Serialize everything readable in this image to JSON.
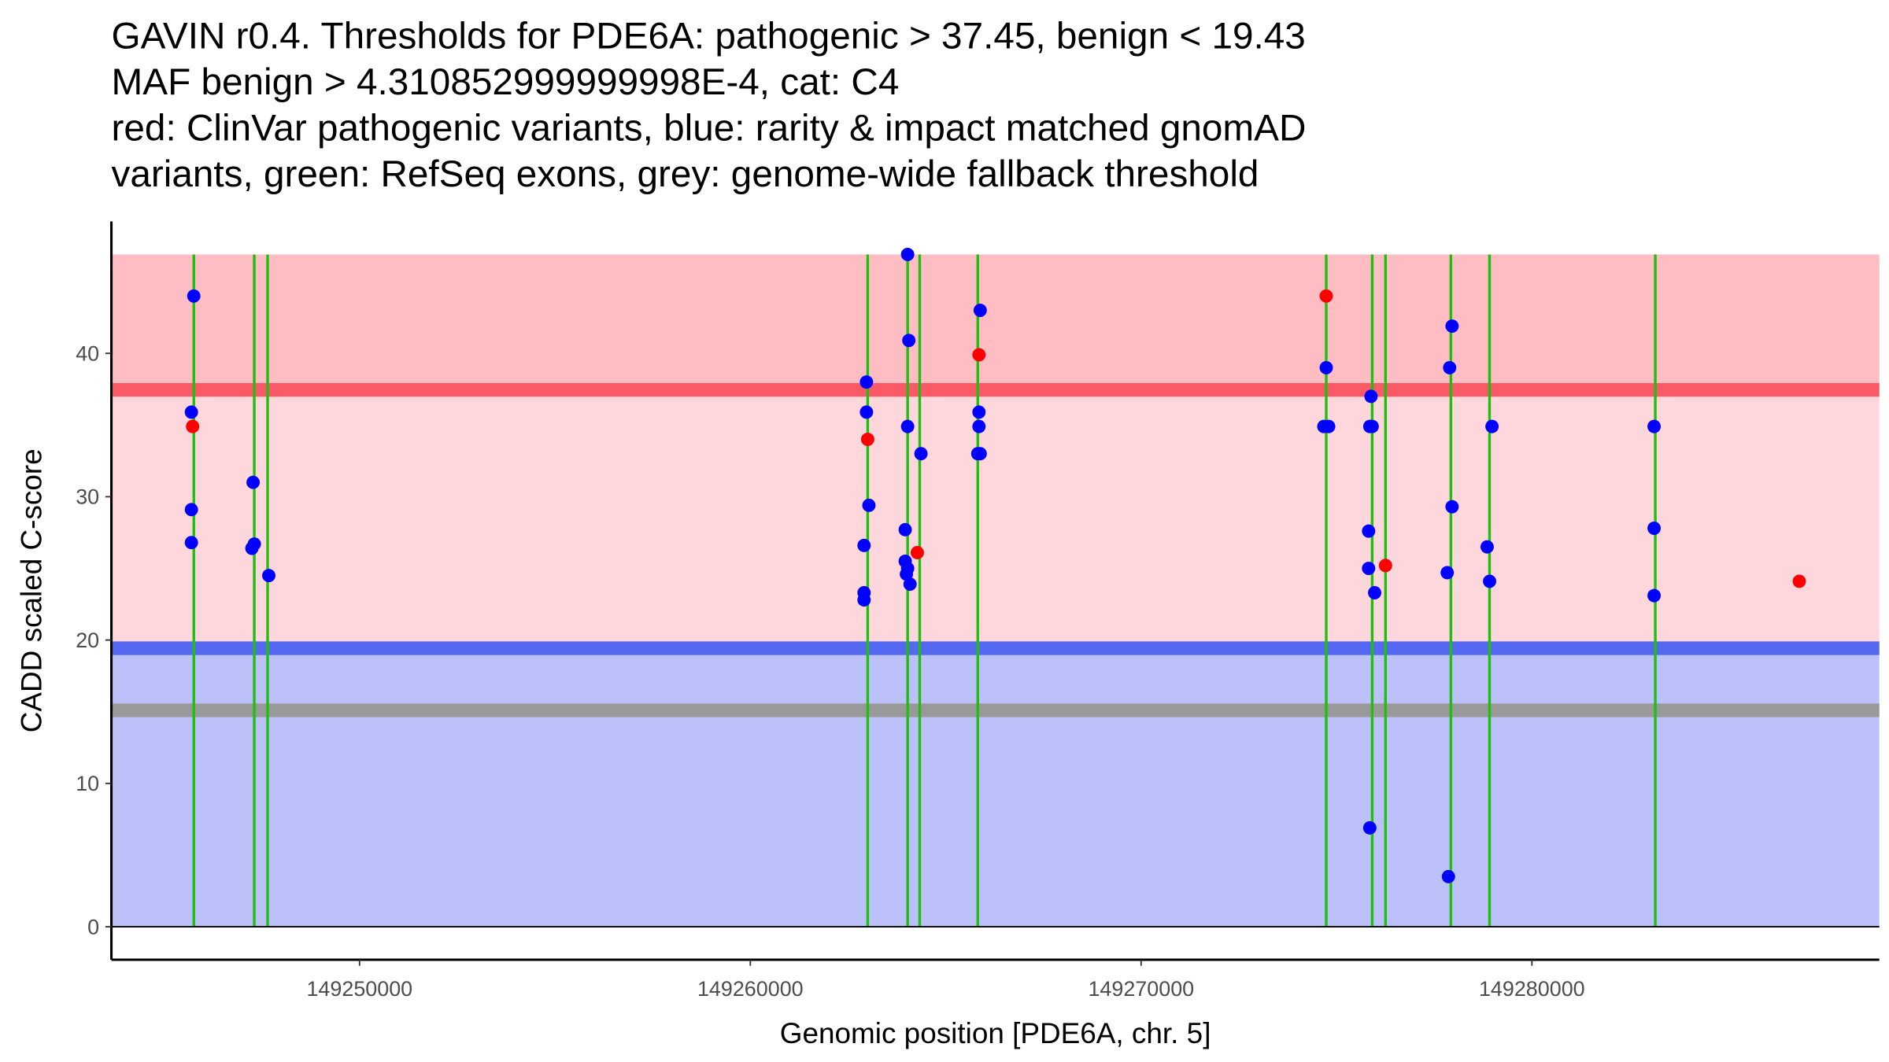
{
  "chart_data": {
    "type": "scatter",
    "title_lines": [
      "GAVIN r0.4. Thresholds for PDE6A: pathogenic > 37.45, benign < 19.43",
      "MAF benign > 4.310852999999998E-4, cat: C4",
      "red: ClinVar pathogenic variants, blue: rarity & impact matched gnomAD",
      "variants, green: RefSeq exons, grey: genome-wide fallback threshold"
    ],
    "xlabel": "Genomic position [PDE6A, chr. 5]",
    "ylabel": "CADD scaled C-score",
    "xlim": [
      149243650,
      149288890
    ],
    "ylim": [
      -2.3,
      49.2
    ],
    "xticks": [
      149250000,
      149260000,
      149270000,
      149280000
    ],
    "xtick_labels": [
      "149250000",
      "149260000",
      "149270000",
      "149280000"
    ],
    "yticks": [
      0,
      10,
      20,
      30,
      40
    ],
    "ytick_labels": [
      "0",
      "10",
      "20",
      "30",
      "40"
    ],
    "thresholds": {
      "pathogenic": 37.45,
      "benign": 19.43,
      "fallback": 15.1,
      "band_top": 46.9
    },
    "colors": {
      "pathogenic_band": "#fdbdc2",
      "mid_band": "#fdd7dc",
      "benign_band": "#bcc1fa",
      "pathogenic_line": "#fa5966",
      "benign_line": "#5468f2",
      "fallback_line": "#999999",
      "exon": "#1fbf0f",
      "clinvar": "#ff0000",
      "gnomad": "#0000ff"
    },
    "exons": [
      149245759,
      149247306,
      149247647,
      149263003,
      149264025,
      149264334,
      149265820,
      149274737,
      149275913,
      149276254,
      149277926,
      149278916,
      149283158
    ],
    "series": [
      {
        "name": "ClinVar pathogenic",
        "color": "#ff0000",
        "points": [
          [
            149245728,
            34.9
          ],
          [
            149263003,
            34.0
          ],
          [
            149264273,
            26.1
          ],
          [
            149265851,
            39.9
          ],
          [
            149274737,
            44.0
          ],
          [
            149276254,
            25.2
          ],
          [
            149286842,
            24.1
          ]
        ]
      },
      {
        "name": "gnomAD",
        "color": "#0000ff",
        "points": [
          [
            149245758,
            44.0
          ],
          [
            149245697,
            35.9
          ],
          [
            149245697,
            29.1
          ],
          [
            149245697,
            26.8
          ],
          [
            149247276,
            31.0
          ],
          [
            149247245,
            26.4
          ],
          [
            149247307,
            26.7
          ],
          [
            149247678,
            24.5
          ],
          [
            149262972,
            38.0
          ],
          [
            149262972,
            35.9
          ],
          [
            149263034,
            29.4
          ],
          [
            149262910,
            26.6
          ],
          [
            149262910,
            23.3
          ],
          [
            149262910,
            22.8
          ],
          [
            149264025,
            46.9
          ],
          [
            149264056,
            40.9
          ],
          [
            149264025,
            34.9
          ],
          [
            149263963,
            27.7
          ],
          [
            149263963,
            25.5
          ],
          [
            149264025,
            25.0
          ],
          [
            149263994,
            24.6
          ],
          [
            149264087,
            23.9
          ],
          [
            149264366,
            33.0
          ],
          [
            149265882,
            43.0
          ],
          [
            149265851,
            35.9
          ],
          [
            149265851,
            34.9
          ],
          [
            149265820,
            33.0
          ],
          [
            149265882,
            33.0
          ],
          [
            149274737,
            39.0
          ],
          [
            149274675,
            34.9
          ],
          [
            149274799,
            34.9
          ],
          [
            149275883,
            37.0
          ],
          [
            149275852,
            34.9
          ],
          [
            149275913,
            34.9
          ],
          [
            149275821,
            27.6
          ],
          [
            149275821,
            25.0
          ],
          [
            149275976,
            23.3
          ],
          [
            149275852,
            6.9
          ],
          [
            149277957,
            41.9
          ],
          [
            149277895,
            39.0
          ],
          [
            149277957,
            29.3
          ],
          [
            149277833,
            24.7
          ],
          [
            149277864,
            3.5
          ],
          [
            149278855,
            26.5
          ],
          [
            149278917,
            24.1
          ],
          [
            149278979,
            34.9
          ],
          [
            149283127,
            34.9
          ],
          [
            149283127,
            27.8
          ],
          [
            149283127,
            23.1
          ]
        ]
      }
    ]
  }
}
